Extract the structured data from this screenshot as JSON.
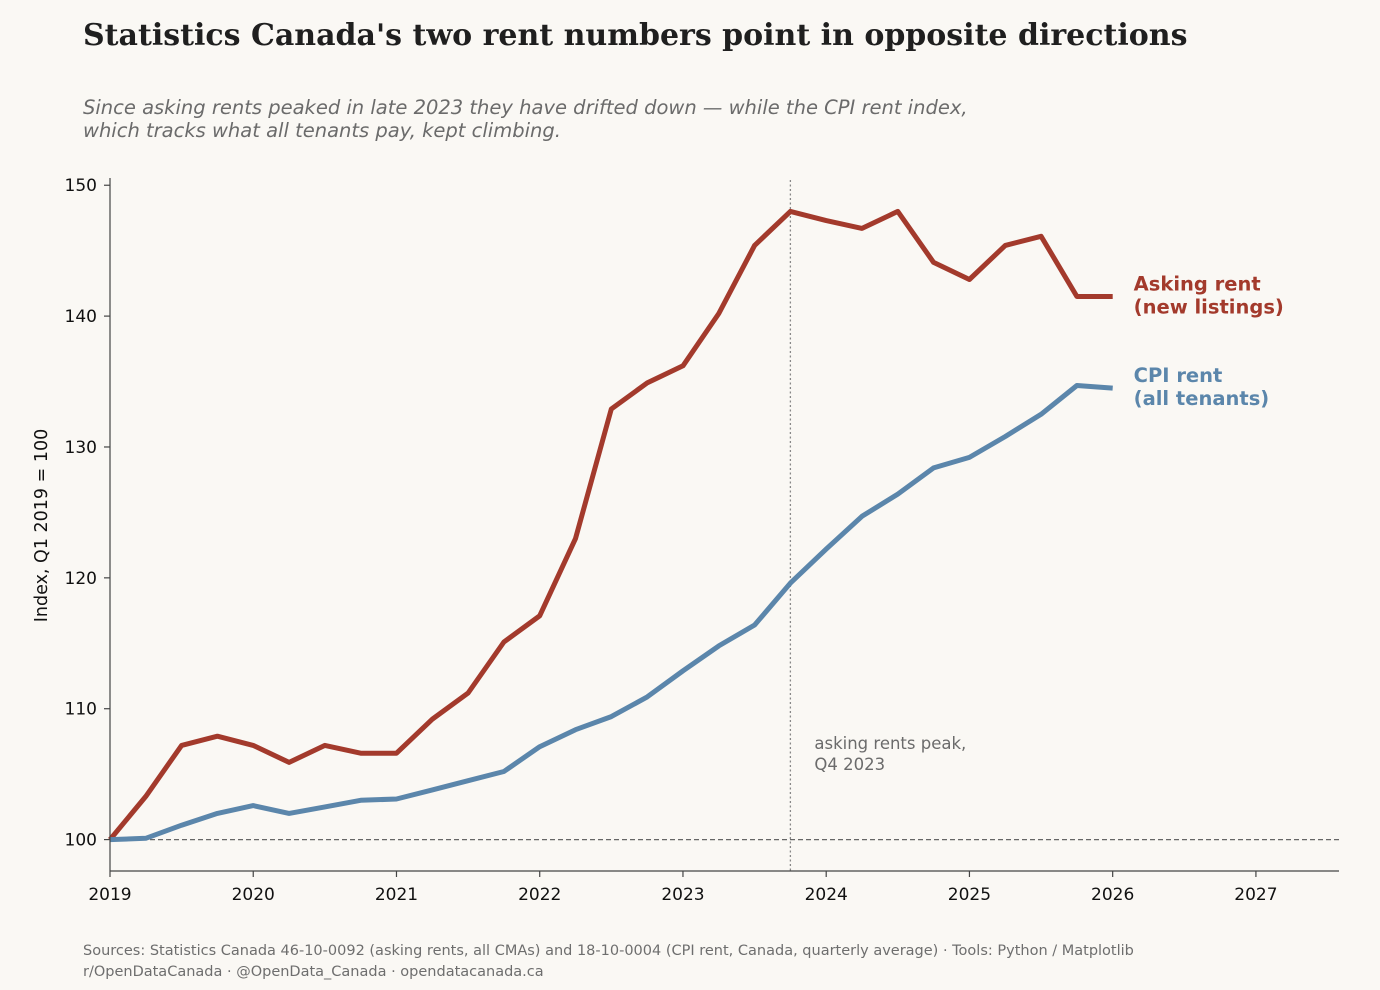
{
  "header": {
    "title": "Statistics Canada's two rent numbers point in opposite directions",
    "subtitle_lines": [
      "Since asking rents peaked in late 2023 they have drifted down — while the CPI rent index,",
      "which tracks what all tenants pay, kept climbing."
    ]
  },
  "footer": {
    "lines": [
      "Sources: Statistics Canada 46-10-0092 (asking rents, all CMAs) and 18-10-0004 (CPI rent, Canada, quarterly average) · Tools: Python / Matplotlib",
      "r/OpenDataCanada · @OpenData_Canada · opendatacanada.ca"
    ]
  },
  "chart_data": {
    "type": "line",
    "ylabel": "Index, Q1 2019 = 100",
    "xlabel": "",
    "xlim": [
      2019,
      2027.58
    ],
    "ylim": [
      97.6,
      150.4
    ],
    "x_ticks": [
      2019,
      2020,
      2021,
      2022,
      2023,
      2024,
      2025,
      2026,
      2027
    ],
    "y_ticks": [
      100,
      110,
      120,
      130,
      140,
      150
    ],
    "baseline": 100,
    "x": [
      2019.0,
      2019.25,
      2019.5,
      2019.75,
      2020.0,
      2020.25,
      2020.5,
      2020.75,
      2021.0,
      2021.25,
      2021.5,
      2021.75,
      2022.0,
      2022.25,
      2022.5,
      2022.75,
      2023.0,
      2023.25,
      2023.5,
      2023.75,
      2024.0,
      2024.25,
      2024.5,
      2024.75,
      2025.0,
      2025.25,
      2025.5,
      2025.75,
      2026.0
    ],
    "series": [
      {
        "name": "Asking rent (new listings)",
        "label_lines": [
          "Asking rent",
          "(new listings)"
        ],
        "color": "#a33a2c",
        "values": [
          100.0,
          103.3,
          107.2,
          107.9,
          107.2,
          105.9,
          107.2,
          106.6,
          106.6,
          109.2,
          111.2,
          115.1,
          117.1,
          123.0,
          132.9,
          134.9,
          136.2,
          140.2,
          145.4,
          148.0,
          147.3,
          146.7,
          148.0,
          144.1,
          142.8,
          145.4,
          146.1,
          141.5,
          141.5
        ]
      },
      {
        "name": "CPI rent (all tenants)",
        "label_lines": [
          "CPI rent",
          "(all tenants)"
        ],
        "color": "#5b86ab",
        "values": [
          100.0,
          100.1,
          101.1,
          102.0,
          102.6,
          102.0,
          102.5,
          103.0,
          103.1,
          103.8,
          104.5,
          105.2,
          107.1,
          108.4,
          109.4,
          110.9,
          112.9,
          114.8,
          116.4,
          119.6,
          122.2,
          124.7,
          126.4,
          128.4,
          129.2,
          130.8,
          132.5,
          134.7,
          134.5
        ]
      }
    ],
    "annotation": {
      "x": 2023.75,
      "text_lines": [
        "asking rents peak,",
        "Q4 2023"
      ]
    },
    "grid": false,
    "legend": "direct labels at line ends"
  }
}
